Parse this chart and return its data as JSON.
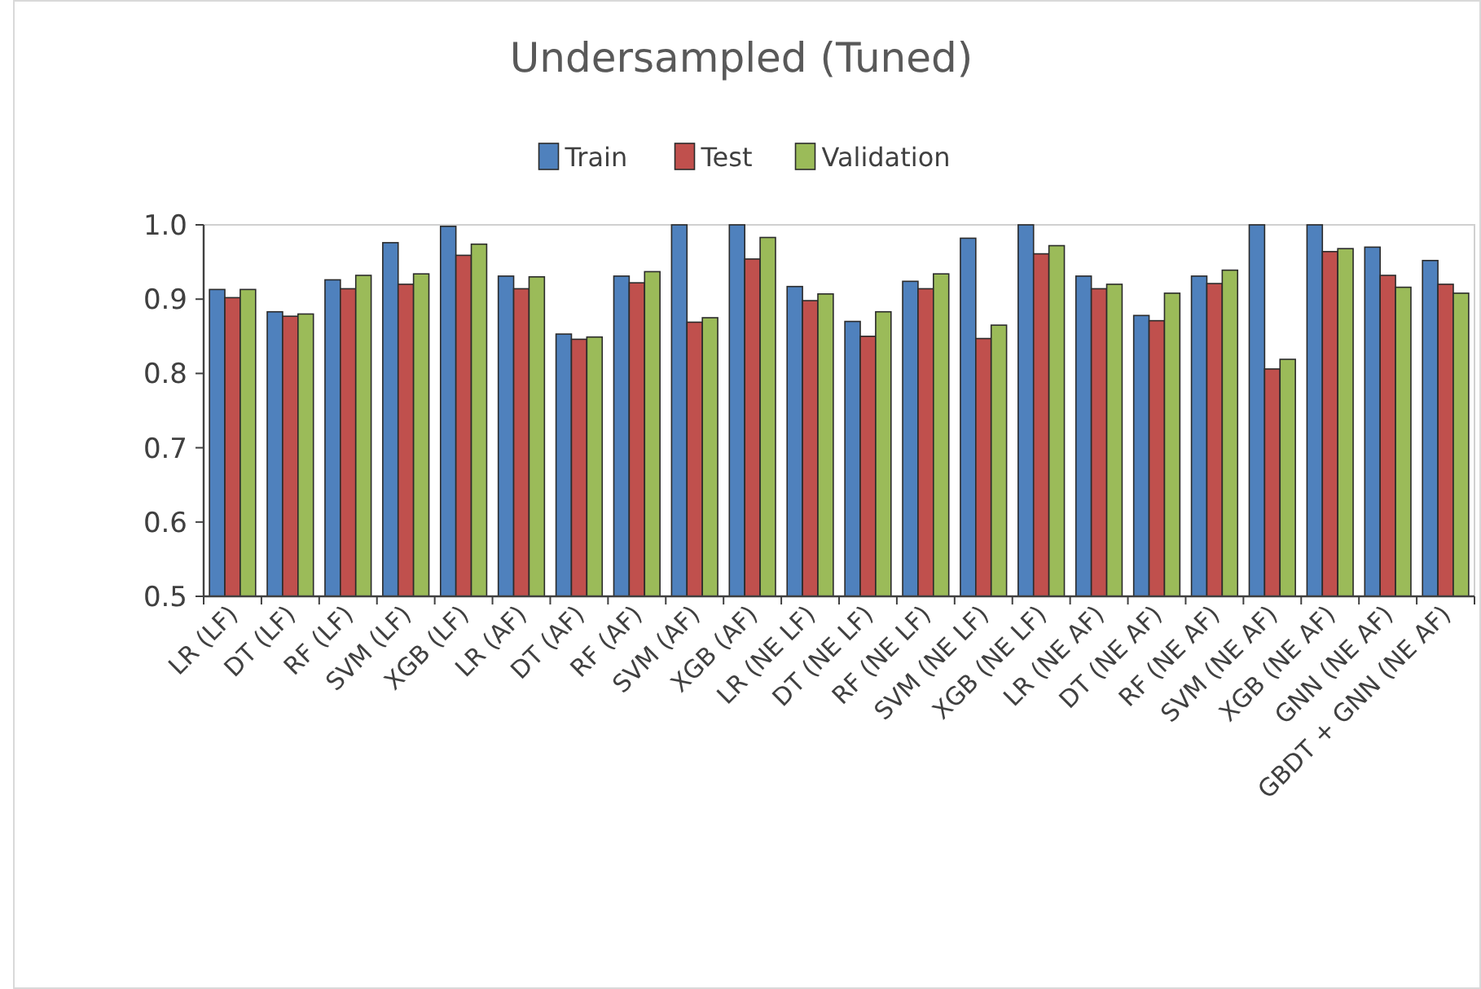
{
  "chart_data": {
    "type": "bar",
    "title": "Undersampled (Tuned)",
    "categories": [
      "LR (LF)",
      "DT (LF)",
      "RF (LF)",
      "SVM (LF)",
      "XGB (LF)",
      "LR (AF)",
      "DT (AF)",
      "RF (AF)",
      "SVM (AF)",
      "XGB (AF)",
      "LR (NE LF)",
      "DT (NE LF)",
      "RF (NE LF)",
      "SVM (NE LF)",
      "XGB (NE LF)",
      "LR (NE AF)",
      "DT (NE AF)",
      "RF (NE AF)",
      "SVM (NE AF)",
      "XGB (NE AF)",
      "GNN (NE AF)",
      "GBDT + GNN (NE AF)"
    ],
    "series": [
      {
        "name": "Train",
        "color": "#4f81bd",
        "values": [
          0.913,
          0.883,
          0.926,
          0.976,
          0.998,
          0.931,
          0.853,
          0.931,
          1.0,
          1.0,
          0.917,
          0.87,
          0.924,
          0.982,
          1.0,
          0.931,
          0.878,
          0.931,
          1.0,
          1.0,
          0.97,
          0.952
        ]
      },
      {
        "name": "Test",
        "color": "#c0504d",
        "values": [
          0.902,
          0.877,
          0.914,
          0.92,
          0.959,
          0.914,
          0.846,
          0.922,
          0.869,
          0.954,
          0.898,
          0.85,
          0.914,
          0.847,
          0.961,
          0.914,
          0.871,
          0.921,
          0.806,
          0.964,
          0.932,
          0.92
        ]
      },
      {
        "name": "Validation",
        "color": "#9bbb59",
        "values": [
          0.913,
          0.88,
          0.932,
          0.934,
          0.974,
          0.93,
          0.849,
          0.937,
          0.875,
          0.983,
          0.907,
          0.883,
          0.934,
          0.865,
          0.972,
          0.92,
          0.908,
          0.939,
          0.819,
          0.968,
          0.916,
          0.908
        ]
      }
    ],
    "ylim": [
      0.5,
      1.0
    ],
    "yticks": [
      {
        "value": 0.5,
        "label": "0.5"
      },
      {
        "value": 0.6,
        "label": "0.6"
      },
      {
        "value": 0.7,
        "label": "0.7"
      },
      {
        "value": 0.8,
        "label": "0.8"
      },
      {
        "value": 0.9,
        "label": "0.9"
      },
      {
        "value": 1.0,
        "label": "1.0"
      }
    ],
    "legend": "top",
    "grid": false
  }
}
